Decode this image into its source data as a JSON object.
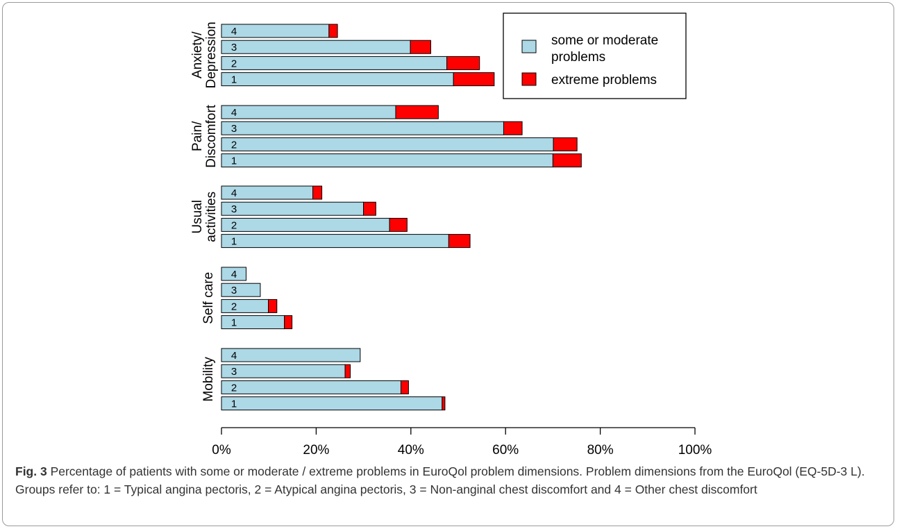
{
  "chart_data": {
    "type": "bar",
    "orientation": "horizontal",
    "stacked": true,
    "title": "",
    "xlabel": "",
    "ylabel": "",
    "xlim": [
      0,
      1
    ],
    "x_ticks": [
      "0%",
      "20%",
      "40%",
      "60%",
      "80%",
      "100%"
    ],
    "x_tick_values": [
      0,
      0.2,
      0.4,
      0.6,
      0.8,
      1.0
    ],
    "grid": false,
    "legend_position": "top-right",
    "series": [
      {
        "name": "some or moderate problems",
        "color": "#add8e6"
      },
      {
        "name": "extreme problems",
        "color": "#ff0000"
      }
    ],
    "groups": [
      {
        "label_lines": [
          "Anxiety/",
          "Depression"
        ],
        "bars": [
          {
            "category": "4",
            "moderate": 0.227,
            "extreme": 0.018
          },
          {
            "category": "3",
            "moderate": 0.399,
            "extreme": 0.043
          },
          {
            "category": "2",
            "moderate": 0.476,
            "extreme": 0.069
          },
          {
            "category": "1",
            "moderate": 0.49,
            "extreme": 0.086
          }
        ]
      },
      {
        "label_lines": [
          "Pain/",
          "Discomfort"
        ],
        "bars": [
          {
            "category": "4",
            "moderate": 0.368,
            "extreme": 0.09
          },
          {
            "category": "3",
            "moderate": 0.596,
            "extreme": 0.039
          },
          {
            "category": "2",
            "moderate": 0.701,
            "extreme": 0.05
          },
          {
            "category": "1",
            "moderate": 0.7,
            "extreme": 0.06
          }
        ]
      },
      {
        "label_lines": [
          "Usual",
          "activities"
        ],
        "bars": [
          {
            "category": "4",
            "moderate": 0.193,
            "extreme": 0.019
          },
          {
            "category": "3",
            "moderate": 0.3,
            "extreme": 0.026
          },
          {
            "category": "2",
            "moderate": 0.355,
            "extreme": 0.037
          },
          {
            "category": "1",
            "moderate": 0.48,
            "extreme": 0.045
          }
        ]
      },
      {
        "label_lines": [
          "Self care"
        ],
        "bars": [
          {
            "category": "4",
            "moderate": 0.052,
            "extreme": 0.0
          },
          {
            "category": "3",
            "moderate": 0.082,
            "extreme": 0.0
          },
          {
            "category": "2",
            "moderate": 0.099,
            "extreme": 0.018
          },
          {
            "category": "1",
            "moderate": 0.133,
            "extreme": 0.016
          }
        ]
      },
      {
        "label_lines": [
          "Mobility"
        ],
        "bars": [
          {
            "category": "4",
            "moderate": 0.293,
            "extreme": 0.0
          },
          {
            "category": "3",
            "moderate": 0.261,
            "extreme": 0.011
          },
          {
            "category": "2",
            "moderate": 0.379,
            "extreme": 0.016
          },
          {
            "category": "1",
            "moderate": 0.466,
            "extreme": 0.006
          }
        ]
      }
    ]
  },
  "caption": {
    "label": "Fig. 3",
    "text": " Percentage of patients with some or moderate / extreme problems in EuroQol problem dimensions. Problem dimensions from the EuroQol (EQ-5D-3 L). Groups refer to: 1 = Typical angina pectoris, 2 = Atypical angina pectoris, 3 = Non-anginal chest discomfort and 4 = Other chest discomfort"
  },
  "legend": {
    "moderate_lines": [
      "some or moderate",
      "problems"
    ],
    "extreme": "extreme problems"
  }
}
